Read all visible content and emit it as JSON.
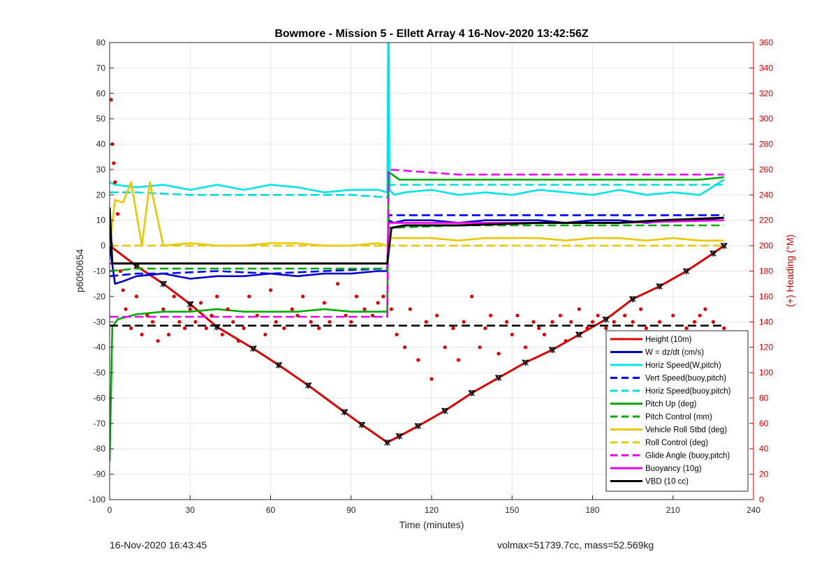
{
  "chart_data": {
    "type": "line",
    "title": "Bowmore - Mission 5 - Ellett Array 4 16-Nov-2020 13:42:56Z",
    "xlabel": "Time (minutes)",
    "ylabel": "p6050654",
    "y2label": "(+) Heading (°M)",
    "xlim": [
      0,
      240
    ],
    "ylim": [
      -100,
      80
    ],
    "y2lim": [
      0,
      360
    ],
    "xticks": [
      0,
      30,
      60,
      90,
      120,
      150,
      180,
      210,
      240
    ],
    "yticks": [
      -100,
      -90,
      -80,
      -70,
      -60,
      -50,
      -40,
      -30,
      -20,
      -10,
      0,
      10,
      20,
      30,
      40,
      50,
      60,
      70,
      80
    ],
    "y2ticks": [
      0,
      20,
      40,
      60,
      80,
      100,
      120,
      140,
      160,
      180,
      200,
      220,
      240,
      260,
      280,
      300,
      320,
      340,
      360
    ],
    "grid": true,
    "legend_position": "bottom-right",
    "colors": {
      "height": "#e00000",
      "w": "#0000cc",
      "horiz_w": "#00e5e5",
      "vert_buoy": "#0000ff",
      "horiz_buoy": "#00dddd",
      "pitch": "#00aa00",
      "pitch_ctrl": "#00aa00",
      "roll": "#e8c800",
      "roll_ctrl": "#e8c800",
      "glide": "#ee00ee",
      "buoyancy": "#ee00ee",
      "vbd": "#000000",
      "heading": "#e00000",
      "axis2": "#d40000"
    },
    "series": [
      {
        "key": "height",
        "name": "Height (10m)",
        "style": "solid",
        "axis": "left",
        "x": [
          0,
          10,
          20,
          30,
          40,
          53.5,
          63,
          74,
          87.5,
          94,
          103.5,
          108,
          115,
          125,
          135,
          145,
          155,
          165,
          175,
          185,
          195,
          205,
          215,
          225,
          229
        ],
        "y": [
          0,
          -8,
          -15,
          -23,
          -32,
          -40.5,
          -47,
          -55,
          -65.5,
          -70.5,
          -77.5,
          -75,
          -71,
          -65,
          -58,
          -52,
          -46,
          -41,
          -35,
          -29,
          -21,
          -16,
          -10,
          -3,
          0
        ]
      },
      {
        "key": "w",
        "name": "W = dz/dt (cm/s)",
        "style": "solid",
        "axis": "left",
        "x": [
          0,
          2,
          5,
          10,
          20,
          30,
          40,
          50,
          60,
          70,
          80,
          90,
          100,
          103.5,
          104,
          106,
          110,
          120,
          130,
          140,
          150,
          160,
          170,
          180,
          190,
          200,
          210,
          220,
          229
        ],
        "y": [
          0,
          -15,
          -14,
          -12,
          -11,
          -13,
          -12,
          -12,
          -11,
          -12,
          -11,
          -11,
          -10,
          -10,
          10,
          9,
          10,
          10,
          9,
          10,
          10,
          10,
          9,
          10,
          10,
          9,
          10,
          10,
          11
        ]
      },
      {
        "key": "horiz_w",
        "name": "Horiz Speed(W,pitch)",
        "style": "solid",
        "axis": "left",
        "x": [
          0,
          2,
          10,
          20,
          30,
          40,
          50,
          60,
          70,
          80,
          90,
          100,
          103.5,
          103.8,
          104,
          104.3,
          106,
          110,
          120,
          130,
          140,
          150,
          160,
          170,
          180,
          190,
          200,
          210,
          220,
          229
        ],
        "y": [
          25,
          24,
          23,
          24,
          22,
          24,
          22,
          24,
          23,
          21,
          22,
          22,
          21,
          80,
          80,
          22,
          20,
          21,
          22,
          20,
          21,
          20,
          22,
          21,
          20,
          22,
          20,
          21,
          20,
          26
        ]
      },
      {
        "key": "vert_buoy",
        "name": "Vert Speed(buoy,pitch)",
        "style": "dashed",
        "axis": "left",
        "x": [
          0,
          10,
          20,
          40,
          60,
          80,
          103.5,
          104,
          110,
          130,
          150,
          170,
          190,
          210,
          229
        ],
        "y": [
          -12,
          -11,
          -11,
          -10,
          -11,
          -10,
          -9,
          12,
          12,
          12,
          12,
          12,
          12,
          12,
          12
        ]
      },
      {
        "key": "horiz_buoy",
        "name": "Horiz Speed(buoy,pitch)",
        "style": "dashed",
        "axis": "left",
        "x": [
          0,
          10,
          30,
          60,
          90,
          103.5,
          104,
          130,
          160,
          190,
          229
        ],
        "y": [
          21,
          21,
          20,
          20,
          20,
          19,
          24,
          24,
          24,
          24,
          24
        ]
      },
      {
        "key": "pitch",
        "name": "Pitch Up (deg)",
        "style": "solid",
        "axis": "left",
        "x": [
          0,
          1,
          3,
          10,
          20,
          30,
          40,
          50,
          60,
          70,
          80,
          90,
          100,
          103.5,
          104,
          108,
          120,
          140,
          160,
          180,
          200,
          220,
          229
        ],
        "y": [
          -85,
          -32,
          -29,
          -27,
          -26,
          -26,
          -25,
          -26,
          -26,
          -26,
          -25,
          -26,
          -26,
          -26,
          29,
          26,
          26,
          26,
          26,
          26,
          26,
          26,
          27
        ]
      },
      {
        "key": "pitch_ctrl",
        "name": "Pitch Control (mm)",
        "style": "dashed",
        "axis": "left",
        "x": [
          0,
          10,
          30,
          60,
          90,
          103.5,
          104,
          130,
          160,
          190,
          229
        ],
        "y": [
          -10,
          -9,
          -9,
          -9,
          -9,
          -9,
          7,
          8,
          8,
          8,
          8
        ]
      },
      {
        "key": "roll",
        "name": "Vehicle Roll Stbd (deg)",
        "style": "solid",
        "axis": "left",
        "x": [
          0,
          2,
          5,
          8,
          12,
          15,
          20,
          30,
          40,
          50,
          60,
          70,
          80,
          90,
          100,
          103.5,
          104,
          110,
          120,
          130,
          140,
          150,
          160,
          170,
          180,
          190,
          200,
          210,
          220,
          229
        ],
        "y": [
          0,
          18,
          17,
          25,
          0,
          25,
          0,
          1,
          0,
          0,
          1,
          1,
          0,
          0,
          1,
          0,
          3,
          3,
          3,
          2,
          3,
          3,
          3,
          2,
          3,
          3,
          2,
          3,
          2,
          2
        ]
      },
      {
        "key": "roll_ctrl",
        "name": "Roll Control (deg)",
        "style": "dashed",
        "axis": "left",
        "x": [
          0,
          30,
          60,
          90,
          103.5,
          104,
          130,
          160,
          190,
          229
        ],
        "y": [
          0,
          0,
          0,
          0,
          0,
          0,
          0,
          0,
          0,
          0
        ]
      },
      {
        "key": "glide",
        "name": "Glide Angle (buoy,pitch)",
        "style": "dashed",
        "axis": "left",
        "x": [
          0,
          10,
          30,
          60,
          90,
          103.5,
          104,
          130,
          160,
          190,
          229
        ],
        "y": [
          -28,
          -28,
          -28,
          -28,
          -28,
          -28,
          30,
          28,
          28,
          28,
          28
        ]
      },
      {
        "key": "buoyancy",
        "name": "Buoyancy (10g)",
        "style": "solid",
        "axis": "left",
        "x": [
          0,
          30,
          60,
          90,
          103.5,
          104,
          130,
          160,
          190,
          229
        ],
        "y": [
          -7,
          -7,
          -7,
          -7,
          -7,
          9,
          9,
          9,
          9,
          10
        ]
      },
      {
        "key": "vbd",
        "name": "VBD (10 cc)",
        "style": "solid",
        "axis": "left",
        "x": [
          0,
          1,
          30,
          60,
          90,
          103.5,
          105,
          110,
          130,
          160,
          190,
          205,
          229
        ],
        "y": [
          15,
          -7,
          -7,
          -7,
          -7,
          -7,
          7,
          8,
          8,
          9,
          9,
          10,
          11
        ]
      },
      {
        "key": "heading",
        "style": "scatter",
        "axis": "right",
        "x": [
          0.5,
          1,
          1.5,
          2,
          3,
          4,
          5,
          6,
          8,
          10,
          12,
          14,
          16,
          18,
          20,
          22,
          24,
          26,
          28,
          30,
          32,
          34,
          36,
          38,
          40,
          42,
          44,
          46,
          48,
          50,
          52,
          55,
          58,
          60,
          62,
          65,
          68,
          70,
          72,
          75,
          78,
          80,
          82,
          85,
          88,
          90,
          92,
          95,
          98,
          100,
          102,
          105,
          107,
          110,
          112,
          115,
          118,
          120,
          122,
          125,
          128,
          130,
          132,
          135,
          138,
          140,
          142,
          145,
          148,
          150,
          152,
          155,
          158,
          160,
          162,
          165,
          168,
          170,
          172,
          175,
          178,
          180,
          182,
          185,
          188,
          190,
          192,
          195,
          198,
          200,
          202,
          205,
          208,
          210,
          212,
          215,
          218,
          220,
          222,
          225,
          227,
          229
        ],
        "y": [
          315,
          280,
          265,
          250,
          225,
          180,
          165,
          150,
          135,
          160,
          130,
          145,
          140,
          125,
          150,
          130,
          160,
          140,
          135,
          150,
          140,
          155,
          135,
          145,
          160,
          130,
          150,
          140,
          125,
          135,
          160,
          145,
          130,
          165,
          140,
          135,
          150,
          145,
          160,
          140,
          135,
          155,
          140,
          170,
          145,
          140,
          160,
          150,
          145,
          155,
          160,
          150,
          130,
          120,
          150,
          110,
          140,
          95,
          145,
          120,
          135,
          110,
          140,
          160,
          120,
          135,
          145,
          115,
          140,
          130,
          145,
          120,
          140,
          135,
          130,
          140,
          145,
          125,
          140,
          150,
          135,
          140,
          145,
          135,
          140,
          130,
          145,
          140,
          150,
          135,
          125,
          140,
          130,
          145,
          120,
          135,
          140,
          145,
          150,
          140,
          125,
          135
        ]
      },
      {
        "key": "heading_target",
        "style": "dashed",
        "axis": "right",
        "x": [
          0,
          229
        ],
        "y": [
          137,
          137
        ]
      }
    ]
  },
  "footer": {
    "left": "16-Nov-2020 16:43:45",
    "right": "volmax=51739.7cc, mass=52.569kg"
  }
}
